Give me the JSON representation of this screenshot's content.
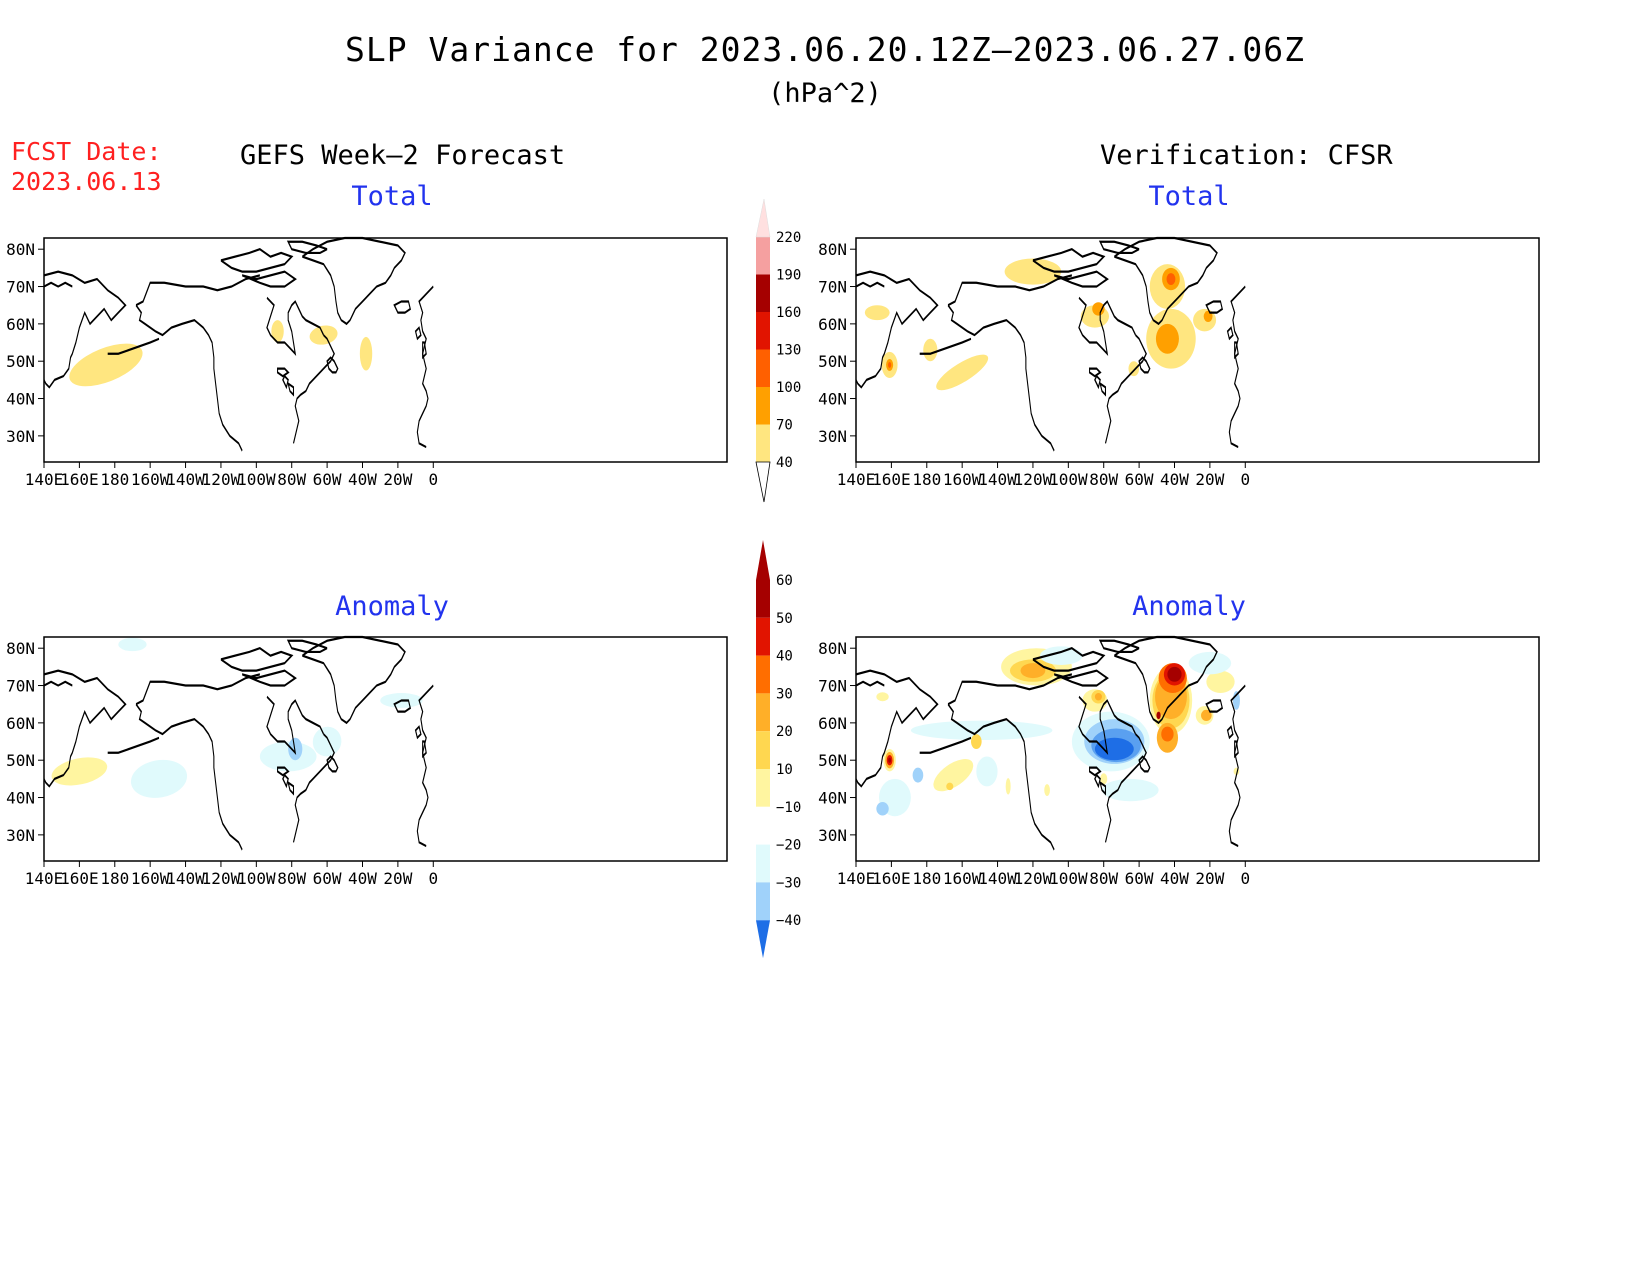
{
  "title": "SLP Variance for 2023.06.20.12Z–2023.06.27.06Z",
  "units": "(hPa^2)",
  "fcst_date_label": "FCST Date:",
  "fcst_date_value": "2023.06.13",
  "left_header": "GEFS Week–2 Forecast",
  "right_header": "Verification: CFSR",
  "panels": {
    "top_left_title": "Total",
    "top_right_title": "Total",
    "bottom_left_title": "Anomaly",
    "bottom_right_title": "Anomaly"
  },
  "axes": {
    "x_ticks": [
      "140E",
      "160E",
      "180",
      "160W",
      "140W",
      "120W",
      "100W",
      "80W",
      "60W",
      "40W",
      "20W",
      "0"
    ],
    "y_ticks": [
      "80N",
      "70N",
      "60N",
      "50N",
      "40N",
      "30N"
    ]
  },
  "colors": {
    "total_scale": [
      "#ffe680",
      "#ffa000",
      "#ff6000",
      "#e11400",
      "#a50000",
      "#f5a0a0",
      "#ffe0e0"
    ],
    "anomaly_neg": [
      "#1e6ee6",
      "#5aa0f0",
      "#a0d2fa",
      "#e0fafc"
    ],
    "anomaly_pos": [
      "#fff5a0",
      "#ffd750",
      "#ffaf28",
      "#ff6e00",
      "#e11400",
      "#a50000"
    ],
    "title_blue": "#2233ee",
    "fcst_red": "#ff2020"
  },
  "colorbar_total": {
    "levels": [
      "40",
      "70",
      "100",
      "130",
      "160",
      "190",
      "220"
    ]
  },
  "colorbar_anomaly": {
    "levels": [
      "60",
      "50",
      "40",
      "30",
      "20",
      "10",
      "−10",
      "−20",
      "−30",
      "−40"
    ]
  },
  "fields": {
    "top_left": [
      {
        "lon": 175,
        "lat": 49,
        "rx": 22,
        "ry": 4.5,
        "rot": -22,
        "level": 0
      },
      {
        "lon": 272,
        "lat": 58,
        "rx": 3.5,
        "ry": 3,
        "rot": 0,
        "level": 0
      },
      {
        "lon": 298,
        "lat": 57,
        "rx": 8,
        "ry": 2.5,
        "rot": -12,
        "level": 0
      },
      {
        "lon": 322,
        "lat": 52,
        "rx": 3.5,
        "ry": 4.5,
        "rot": 0,
        "level": 0
      }
    ],
    "top_right": [
      {
        "lon": 152,
        "lat": 63,
        "rx": 7,
        "ry": 2,
        "rot": 0,
        "level": 0
      },
      {
        "lon": 159,
        "lat": 49,
        "rx": 4.5,
        "ry": 3.5,
        "rot": 0,
        "level": 0
      },
      {
        "lon": 159,
        "lat": 49,
        "rx": 2,
        "ry": 1.6,
        "rot": 0,
        "level": 1
      },
      {
        "lon": 159,
        "lat": 49,
        "rx": 0.9,
        "ry": 0.8,
        "rot": 0,
        "level": 2
      },
      {
        "lon": 182,
        "lat": 53,
        "rx": 4,
        "ry": 3,
        "rot": 0,
        "level": 0
      },
      {
        "lon": 200,
        "lat": 47,
        "rx": 17,
        "ry": 2.5,
        "rot": -32,
        "level": 0
      },
      {
        "lon": 240,
        "lat": 74,
        "rx": 16,
        "ry": 3.5,
        "rot": 0,
        "level": 0
      },
      {
        "lon": 275,
        "lat": 62,
        "rx": 8,
        "ry": 3,
        "rot": 0,
        "level": 0
      },
      {
        "lon": 277,
        "lat": 64,
        "rx": 3.5,
        "ry": 1.8,
        "rot": 0,
        "level": 1
      },
      {
        "lon": 316,
        "lat": 70,
        "rx": 10,
        "ry": 6,
        "rot": 0,
        "level": 0
      },
      {
        "lon": 318,
        "lat": 72,
        "rx": 5,
        "ry": 3,
        "rot": 0,
        "level": 1
      },
      {
        "lon": 318,
        "lat": 72,
        "rx": 2.5,
        "ry": 1.6,
        "rot": 0,
        "level": 2
      },
      {
        "lon": 318,
        "lat": 56,
        "rx": 14,
        "ry": 8,
        "rot": 0,
        "level": 0
      },
      {
        "lon": 316,
        "lat": 56,
        "rx": 6.5,
        "ry": 4,
        "rot": 0,
        "level": 1
      },
      {
        "lon": 337,
        "lat": 61,
        "rx": 6.5,
        "ry": 3,
        "rot": 0,
        "level": 0
      },
      {
        "lon": 339,
        "lat": 62,
        "rx": 2.5,
        "ry": 1.5,
        "rot": 0,
        "level": 1
      },
      {
        "lon": 297,
        "lat": 48,
        "rx": 3,
        "ry": 2,
        "rot": 0,
        "level": 0
      }
    ],
    "bottom_left": [
      {
        "lon": 190,
        "lat": 81,
        "rx": 8,
        "ry": 1.8,
        "rot": 0,
        "level": -1
      },
      {
        "lon": 205,
        "lat": 45,
        "rx": 16,
        "ry": 5,
        "rot": -10,
        "level": -1
      },
      {
        "lon": 160,
        "lat": 47,
        "rx": 16,
        "ry": 3.5,
        "rot": -12,
        "level": 1
      },
      {
        "lon": 278,
        "lat": 51,
        "rx": 16,
        "ry": 4,
        "rot": 0,
        "level": -1
      },
      {
        "lon": 282,
        "lat": 53,
        "rx": 4,
        "ry": 3,
        "rot": 0,
        "level": -2
      },
      {
        "lon": 300,
        "lat": 55,
        "rx": 8,
        "ry": 4,
        "rot": 25,
        "level": -1
      },
      {
        "lon": 342,
        "lat": 66,
        "rx": 12,
        "ry": 2,
        "rot": 0,
        "level": -1
      }
    ],
    "bottom_right": [
      {
        "lon": 211,
        "lat": 58,
        "rx": 40,
        "ry": 2.6,
        "rot": 0,
        "level": -1
      },
      {
        "lon": 162,
        "lat": 40,
        "rx": 9,
        "ry": 5,
        "rot": 0,
        "level": -1
      },
      {
        "lon": 155,
        "lat": 37,
        "rx": 3.5,
        "ry": 1.8,
        "rot": 0,
        "level": -2
      },
      {
        "lon": 175,
        "lat": 46,
        "rx": 3,
        "ry": 2,
        "rot": 0,
        "level": -2
      },
      {
        "lon": 159,
        "lat": 50,
        "rx": 3.5,
        "ry": 3,
        "rot": 0,
        "level": 1
      },
      {
        "lon": 159,
        "lat": 50,
        "rx": 2.5,
        "ry": 2.2,
        "rot": 0,
        "level": 3
      },
      {
        "lon": 159,
        "lat": 50,
        "rx": 1.6,
        "ry": 1.4,
        "rot": 0,
        "level": 5
      },
      {
        "lon": 159,
        "lat": 50,
        "rx": 0.8,
        "ry": 0.7,
        "rot": 0,
        "level": 6
      },
      {
        "lon": 155,
        "lat": 67,
        "rx": 3.5,
        "ry": 1.2,
        "rot": 0,
        "level": 1
      },
      {
        "lon": 195,
        "lat": 46,
        "rx": 13,
        "ry": 3,
        "rot": -35,
        "level": 1
      },
      {
        "lon": 208,
        "lat": 55,
        "rx": 3,
        "ry": 2,
        "rot": 0,
        "level": 2
      },
      {
        "lon": 193,
        "lat": 43,
        "rx": 2,
        "ry": 1,
        "rot": 0,
        "level": 2
      },
      {
        "lon": 214,
        "lat": 47,
        "rx": 6,
        "ry": 4,
        "rot": 0,
        "level": -1
      },
      {
        "lon": 242,
        "lat": 75,
        "rx": 20,
        "ry": 5,
        "rot": 0,
        "level": 1
      },
      {
        "lon": 240,
        "lat": 74,
        "rx": 13,
        "ry": 3,
        "rot": 0,
        "level": 2
      },
      {
        "lon": 240,
        "lat": 74,
        "rx": 7,
        "ry": 2,
        "rot": 0,
        "level": 3
      },
      {
        "lon": 256,
        "lat": 78,
        "rx": 12,
        "ry": 2.5,
        "rot": 0,
        "level": -1
      },
      {
        "lon": 226,
        "lat": 43,
        "rx": 1.4,
        "ry": 2.2,
        "rot": 0,
        "level": 1
      },
      {
        "lon": 248,
        "lat": 42,
        "rx": 1.6,
        "ry": 1.6,
        "rot": 0,
        "level": 1
      },
      {
        "lon": 275,
        "lat": 66,
        "rx": 7,
        "ry": 3,
        "rot": 0,
        "level": 1
      },
      {
        "lon": 277,
        "lat": 67,
        "rx": 4,
        "ry": 1.8,
        "rot": 0,
        "level": 2
      },
      {
        "lon": 277,
        "lat": 67,
        "rx": 2,
        "ry": 1,
        "rot": 0,
        "level": 3
      },
      {
        "lon": 284,
        "lat": 55,
        "rx": 22,
        "ry": 8,
        "rot": 0,
        "level": -1
      },
      {
        "lon": 286,
        "lat": 55,
        "rx": 17,
        "ry": 6,
        "rot": 0,
        "level": -2
      },
      {
        "lon": 287,
        "lat": 54,
        "rx": 14,
        "ry": 4.5,
        "rot": 0,
        "level": -3
      },
      {
        "lon": 286,
        "lat": 53,
        "rx": 11,
        "ry": 3,
        "rot": 0,
        "level": -4
      },
      {
        "lon": 295,
        "lat": 42,
        "rx": 16,
        "ry": 3,
        "rot": 0,
        "level": -1
      },
      {
        "lon": 280,
        "lat": 45,
        "rx": 2,
        "ry": 1.5,
        "rot": 0,
        "level": 1
      },
      {
        "lon": 318,
        "lat": 66,
        "rx": 12,
        "ry": 9,
        "rot": 0,
        "level": 1
      },
      {
        "lon": 318,
        "lat": 66,
        "rx": 10.5,
        "ry": 7.5,
        "rot": 0,
        "level": 2
      },
      {
        "lon": 318,
        "lat": 67,
        "rx": 9,
        "ry": 6,
        "rot": 0,
        "level": 3
      },
      {
        "lon": 319,
        "lat": 72,
        "rx": 8,
        "ry": 4,
        "rot": 0,
        "level": 4
      },
      {
        "lon": 320,
        "lat": 73,
        "rx": 6,
        "ry": 3,
        "rot": 0,
        "level": 5
      },
      {
        "lon": 320,
        "lat": 73,
        "rx": 4,
        "ry": 2,
        "rot": 0,
        "level": 6
      },
      {
        "lon": 316,
        "lat": 56,
        "rx": 6,
        "ry": 4,
        "rot": 0,
        "level": 3
      },
      {
        "lon": 316,
        "lat": 57,
        "rx": 3.5,
        "ry": 2,
        "rot": 0,
        "level": 4
      },
      {
        "lon": 311,
        "lat": 62,
        "rx": 1.2,
        "ry": 1,
        "rot": 0,
        "level": 6
      },
      {
        "lon": 337,
        "lat": 62,
        "rx": 5,
        "ry": 2.5,
        "rot": 0,
        "level": 1
      },
      {
        "lon": 338,
        "lat": 62,
        "rx": 3,
        "ry": 1.5,
        "rot": 0,
        "level": 3
      },
      {
        "lon": 346,
        "lat": 71,
        "rx": 8,
        "ry": 3,
        "rot": 0,
        "level": 1
      },
      {
        "lon": 355,
        "lat": 66,
        "rx": 2,
        "ry": 2.5,
        "rot": 0,
        "level": -2
      },
      {
        "lon": 355,
        "lat": 47,
        "rx": 1.6,
        "ry": 1,
        "rot": 0,
        "level": 1
      },
      {
        "lon": 340,
        "lat": 76,
        "rx": 12,
        "ry": 3,
        "rot": 0,
        "level": -1
      }
    ]
  }
}
